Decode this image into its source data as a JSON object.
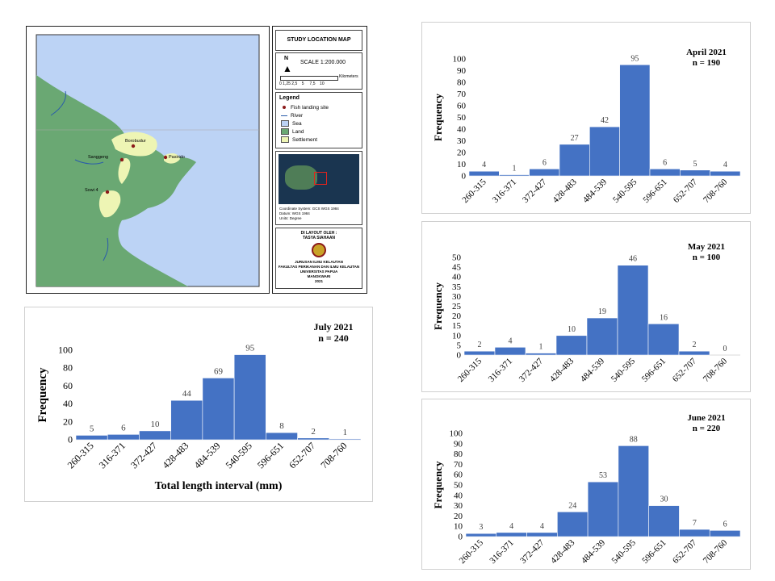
{
  "map": {
    "title": "STUDY LOCATION MAP",
    "scale": "SCALE 1:200.000",
    "north": "N",
    "scale_ticks": "0 1,25 2,5    5     7,5    10",
    "scale_unit": "Kilometers",
    "legend_title": "Legend",
    "legend": [
      {
        "label": "Fish landing site",
        "kind": "dot",
        "color": "#8b1a1a"
      },
      {
        "label": "River",
        "kind": "line",
        "color": "#2a5caa"
      },
      {
        "label": "Sea",
        "kind": "swatch",
        "color": "#bcd3f5"
      },
      {
        "label": "Land",
        "kind": "swatch",
        "color": "#6aa873"
      },
      {
        "label": "Settlement",
        "kind": "swatch",
        "color": "#eef5b4"
      }
    ],
    "inset_caption": [
      "Coordinate System: GCS WGS 1984",
      "Datum: WGS 1984",
      "Units: Degree"
    ],
    "layout_by": [
      "DI LAYOUT OLEH :",
      "TASYA SIAHAAN"
    ],
    "institution": [
      "JURUSAN ILMU KELAUTAN",
      "FAKULTAS PERIKANAN DAN ILMU KELAUTAN",
      "UNIVERSITAS PAPUA",
      "MANOKWARI",
      "2021"
    ],
    "places": [
      "Borobudur",
      "Sanggeng",
      "Pasirido",
      "Sowi 4"
    ],
    "colors": {
      "sea": "#bcd3f5",
      "land": "#6aa873",
      "settlement": "#eef5b4",
      "river": "#2a5caa",
      "site": "#8b1a1a"
    }
  },
  "chart_data": [
    {
      "type": "bar",
      "title": "April 2021",
      "subtitle": "n = 190",
      "xlabel": "",
      "ylabel": "Frequency",
      "categories": [
        "260-315",
        "316-371",
        "372-427",
        "428-483",
        "484-539",
        "540-595",
        "596-651",
        "652-707",
        "708-760"
      ],
      "values": [
        4,
        1,
        6,
        27,
        42,
        95,
        6,
        5,
        4
      ],
      "ylim": [
        0,
        100
      ],
      "yticks": [
        0,
        10,
        20,
        30,
        40,
        50,
        60,
        70,
        80,
        90,
        100
      ],
      "color": "#4472c4"
    },
    {
      "type": "bar",
      "title": "May 2021",
      "subtitle": "n = 100",
      "xlabel": "",
      "ylabel": "Frequency",
      "categories": [
        "260-315",
        "316-371",
        "372-427",
        "428-483",
        "484-539",
        "540-595",
        "596-651",
        "652-707",
        "708-760"
      ],
      "values": [
        2,
        4,
        1,
        10,
        19,
        46,
        16,
        2,
        0
      ],
      "ylim": [
        0,
        50
      ],
      "yticks": [
        0,
        5,
        10,
        15,
        20,
        25,
        30,
        35,
        40,
        45,
        50
      ],
      "color": "#4472c4"
    },
    {
      "type": "bar",
      "title": "June 2021",
      "subtitle": "n = 220",
      "xlabel": "",
      "ylabel": "Frequency",
      "categories": [
        "260-315",
        "316-371",
        "372-427",
        "428-483",
        "484-539",
        "540-595",
        "596-651",
        "652-707",
        "708-760"
      ],
      "values": [
        3,
        4,
        4,
        24,
        53,
        88,
        30,
        7,
        6
      ],
      "ylim": [
        0,
        100
      ],
      "yticks": [
        0,
        10,
        20,
        30,
        40,
        50,
        60,
        70,
        80,
        90,
        100
      ],
      "color": "#4472c4"
    },
    {
      "type": "bar",
      "title": "July 2021",
      "subtitle": "n = 240",
      "xlabel": "Total length interval (mm)",
      "ylabel": "Frequency",
      "categories": [
        "260-315",
        "316-371",
        "372-427",
        "428-483",
        "484-539",
        "540-595",
        "596-651",
        "652-707",
        "708-760"
      ],
      "values": [
        5,
        6,
        10,
        44,
        69,
        95,
        8,
        2,
        1
      ],
      "ylim": [
        0,
        100
      ],
      "yticks": [
        0,
        20,
        40,
        60,
        80,
        100
      ],
      "color": "#4472c4"
    }
  ]
}
